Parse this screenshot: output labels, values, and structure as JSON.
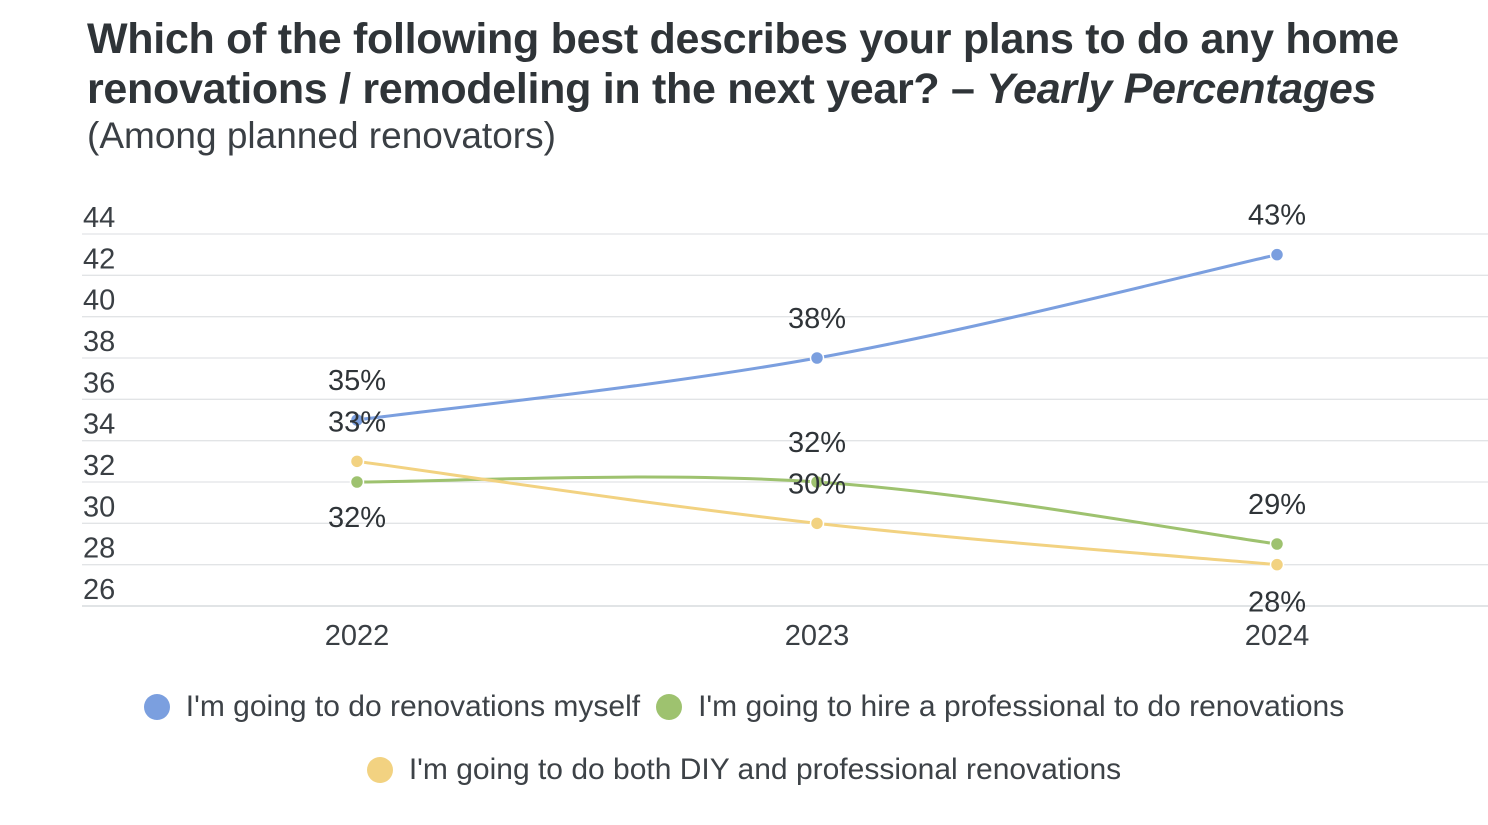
{
  "header": {
    "title_main": "Which of the following best describes your plans to do any home renovations / remodeling in the next year? – ",
    "title_italic": "Yearly Percentages",
    "subtitle": "(Among planned renovators)"
  },
  "chart_data": {
    "type": "line",
    "title": "Which of the following best describes your plans to do any home renovations / remodeling in the next year? – Yearly Percentages",
    "subtitle": "(Among planned renovators)",
    "xlabel": "",
    "ylabel": "",
    "categories": [
      "2022",
      "2023",
      "2024"
    ],
    "ylim": [
      26,
      44
    ],
    "yticks": [
      26,
      28,
      30,
      32,
      34,
      36,
      38,
      40,
      42,
      44
    ],
    "grid": true,
    "legend_position": "bottom",
    "series": [
      {
        "name": "I'm going to do renovations myself",
        "color": "#7b9fdf",
        "values": [
          35,
          38,
          43
        ],
        "labels": [
          "35%",
          "38%",
          "43%"
        ]
      },
      {
        "name": "I'm going to hire a professional to do renovations",
        "color": "#9ec26f",
        "values": [
          32,
          32,
          29
        ],
        "labels": [
          "32%",
          "32%",
          "29%"
        ]
      },
      {
        "name": "I'm going to do both DIY and professional renovations",
        "color": "#f2d281",
        "values": [
          33,
          30,
          28
        ],
        "labels": [
          "33%",
          "30%",
          "28%"
        ]
      }
    ]
  }
}
